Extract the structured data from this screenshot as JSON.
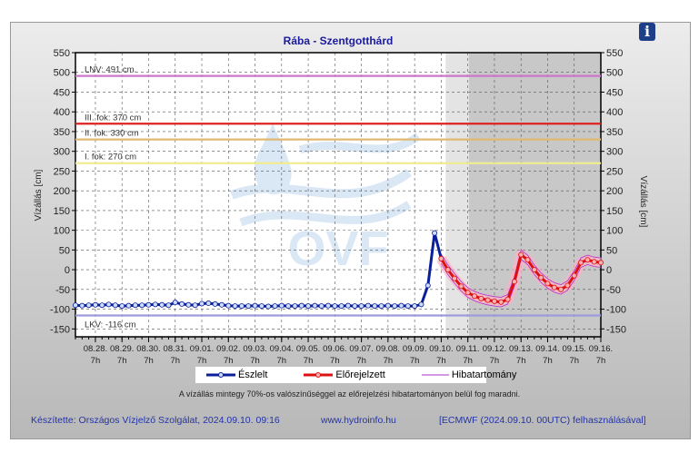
{
  "info_icon": "info-icon",
  "watermark_logo": "OVF",
  "legend": {
    "observed": "Észlelt",
    "forecast": "Előrejelzett",
    "error_band": "Hibatartomány"
  },
  "note": "A vízállás mintegy 70%-os valószínűséggel az előrejelzési hibatartományon belül fog maradni.",
  "footer": {
    "author": "Készítette: Országos Vízjelző Szolgálat, 2024.09.10. 09:16",
    "url": "www.hydroinfo.hu",
    "source": "[ECMWF (2024.09.10. 00UTC) felhasználásával]"
  },
  "chart_data": {
    "type": "line",
    "title": "Rába - Szentgotthárd",
    "ylabel": "Vízállás [cm]",
    "ylabel_right": "Vízállás [cm]",
    "ylim": [
      -170,
      550
    ],
    "yticks": [
      -150,
      -100,
      -50,
      0,
      50,
      100,
      150,
      200,
      250,
      300,
      350,
      400,
      450,
      500,
      550
    ],
    "xlim": [
      "2024-08-27T13:00",
      "2024-09-16T07:00"
    ],
    "xtick_labels": [
      [
        "08.28.",
        "7h"
      ],
      [
        "08.29.",
        "7h"
      ],
      [
        "08.30.",
        "7h"
      ],
      [
        "08.31.",
        "7h"
      ],
      [
        "09.01.",
        "7h"
      ],
      [
        "09.02.",
        "7h"
      ],
      [
        "09.03.",
        "7h"
      ],
      [
        "09.04.",
        "7h"
      ],
      [
        "09.05.",
        "7h"
      ],
      [
        "09.06.",
        "7h"
      ],
      [
        "09.07.",
        "7h"
      ],
      [
        "09.08.",
        "7h"
      ],
      [
        "09.09.",
        "7h"
      ],
      [
        "09.10.",
        "7h"
      ],
      [
        "09.11.",
        "7h"
      ],
      [
        "09.12.",
        "7h"
      ],
      [
        "09.13.",
        "7h"
      ],
      [
        "09.14.",
        "7h"
      ],
      [
        "09.15.",
        "7h"
      ],
      [
        "09.16.",
        "7h"
      ]
    ],
    "grid": true,
    "legend_position": "bottom",
    "shaded_regions": [
      {
        "from": "2024-09-10T11:00",
        "to": "2024-09-11T08:00",
        "color": "#e4e4e4"
      },
      {
        "from": "2024-09-11T08:00",
        "to": "2024-09-16T07:00",
        "color": "#c8c8c8"
      }
    ],
    "thresholds": [
      {
        "label": "LNV: 491 cm.",
        "value": 491,
        "color": "#cc77cc"
      },
      {
        "label": "III. fok: 370 cm",
        "value": 370,
        "color": "#dd2222"
      },
      {
        "label": "II. fok: 330 cm",
        "value": 330,
        "color": "#e0b870"
      },
      {
        "label": "I. fok: 270 cm",
        "value": 270,
        "color": "#f0ec90"
      },
      {
        "label": "LKV: -116 cm",
        "value": -116,
        "color": "#9c9cdc"
      }
    ],
    "series": [
      {
        "name": "Észlelt",
        "color": "#0a1f9a",
        "points": [
          [
            "2024-08-27T13:00",
            -90
          ],
          [
            "2024-08-27T19:00",
            -91
          ],
          [
            "2024-08-28T01:00",
            -90
          ],
          [
            "2024-08-28T07:00",
            -89
          ],
          [
            "2024-08-28T13:00",
            -90
          ],
          [
            "2024-08-28T19:00",
            -88
          ],
          [
            "2024-08-29T01:00",
            -90
          ],
          [
            "2024-08-29T07:00",
            -92
          ],
          [
            "2024-08-29T13:00",
            -91
          ],
          [
            "2024-08-29T19:00",
            -90
          ],
          [
            "2024-08-30T01:00",
            -90
          ],
          [
            "2024-08-30T07:00",
            -89
          ],
          [
            "2024-08-30T13:00",
            -88
          ],
          [
            "2024-08-30T19:00",
            -89
          ],
          [
            "2024-08-31T01:00",
            -90
          ],
          [
            "2024-08-31T07:00",
            -83
          ],
          [
            "2024-08-31T13:00",
            -87
          ],
          [
            "2024-08-31T19:00",
            -89
          ],
          [
            "2024-09-01T01:00",
            -90
          ],
          [
            "2024-09-01T07:00",
            -86
          ],
          [
            "2024-09-01T13:00",
            -85
          ],
          [
            "2024-09-01T19:00",
            -87
          ],
          [
            "2024-09-02T01:00",
            -89
          ],
          [
            "2024-09-02T07:00",
            -91
          ],
          [
            "2024-09-02T13:00",
            -92
          ],
          [
            "2024-09-02T19:00",
            -92
          ],
          [
            "2024-09-03T01:00",
            -92
          ],
          [
            "2024-09-03T07:00",
            -91
          ],
          [
            "2024-09-03T13:00",
            -92
          ],
          [
            "2024-09-03T19:00",
            -93
          ],
          [
            "2024-09-04T01:00",
            -92
          ],
          [
            "2024-09-04T07:00",
            -91
          ],
          [
            "2024-09-04T13:00",
            -92
          ],
          [
            "2024-09-04T19:00",
            -92
          ],
          [
            "2024-09-05T01:00",
            -91
          ],
          [
            "2024-09-05T07:00",
            -92
          ],
          [
            "2024-09-05T13:00",
            -91
          ],
          [
            "2024-09-05T19:00",
            -92
          ],
          [
            "2024-09-06T01:00",
            -91
          ],
          [
            "2024-09-06T07:00",
            -92
          ],
          [
            "2024-09-06T13:00",
            -92
          ],
          [
            "2024-09-06T19:00",
            -91
          ],
          [
            "2024-09-07T01:00",
            -92
          ],
          [
            "2024-09-07T07:00",
            -92
          ],
          [
            "2024-09-07T13:00",
            -91
          ],
          [
            "2024-09-07T19:00",
            -92
          ],
          [
            "2024-09-08T01:00",
            -92
          ],
          [
            "2024-09-08T07:00",
            -91
          ],
          [
            "2024-09-08T13:00",
            -92
          ],
          [
            "2024-09-08T19:00",
            -91
          ],
          [
            "2024-09-09T01:00",
            -92
          ],
          [
            "2024-09-09T07:00",
            -92
          ],
          [
            "2024-09-09T13:00",
            -88
          ],
          [
            "2024-09-09T19:00",
            -40
          ],
          [
            "2024-09-10T01:00",
            93
          ],
          [
            "2024-09-10T07:00",
            28
          ]
        ]
      },
      {
        "name": "Előrejelzett",
        "color": "#dd1111",
        "points": [
          [
            "2024-09-10T07:00",
            28
          ],
          [
            "2024-09-10T13:00",
            0
          ],
          [
            "2024-09-10T19:00",
            -22
          ],
          [
            "2024-09-11T01:00",
            -42
          ],
          [
            "2024-09-11T07:00",
            -58
          ],
          [
            "2024-09-11T13:00",
            -67
          ],
          [
            "2024-09-11T19:00",
            -73
          ],
          [
            "2024-09-12T01:00",
            -77
          ],
          [
            "2024-09-12T07:00",
            -80
          ],
          [
            "2024-09-12T13:00",
            -82
          ],
          [
            "2024-09-12T19:00",
            -75
          ],
          [
            "2024-09-13T01:00",
            -30
          ],
          [
            "2024-09-13T07:00",
            38
          ],
          [
            "2024-09-13T13:00",
            25
          ],
          [
            "2024-09-13T19:00",
            0
          ],
          [
            "2024-09-14T01:00",
            -20
          ],
          [
            "2024-09-14T07:00",
            -35
          ],
          [
            "2024-09-14T13:00",
            -45
          ],
          [
            "2024-09-14T19:00",
            -50
          ],
          [
            "2024-09-15T01:00",
            -40
          ],
          [
            "2024-09-15T07:00",
            -15
          ],
          [
            "2024-09-15T13:00",
            18
          ],
          [
            "2024-09-15T19:00",
            25
          ],
          [
            "2024-09-16T01:00",
            20
          ],
          [
            "2024-09-16T07:00",
            18
          ]
        ]
      },
      {
        "name": "Hibatartomány",
        "color": "#aa33cc",
        "margin": 12
      }
    ]
  }
}
